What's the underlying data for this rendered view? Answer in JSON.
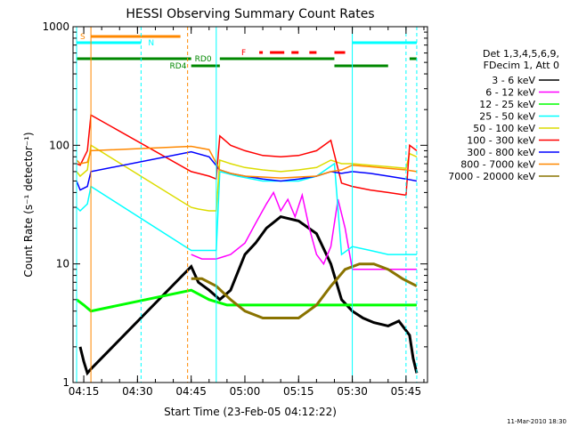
{
  "chart_data": {
    "type": "line",
    "title": "HESSI Observing Summary Count Rates",
    "xlabel": "Start Time (23-Feb-05 04:12:22)",
    "ylabel": "Count Rate (s⁻¹ detector⁻¹)",
    "y_scale": "log",
    "ylim": [
      1,
      1000
    ],
    "xlim": [
      "04:12",
      "05:51"
    ],
    "x_ticks": [
      "04:15",
      "04:30",
      "04:45",
      "05:00",
      "05:15",
      "05:30",
      "05:45"
    ],
    "y_ticks": [
      "1",
      "10",
      "100",
      "1000"
    ],
    "legend_header": [
      "Det 1,3,4,5,6,9,",
      "FDecim 1, Att 0"
    ],
    "legend_position": "right",
    "footer": "11-Mar-2010 18:30",
    "series": [
      {
        "name": "3 - 6 keV",
        "color": "#000000",
        "x": [
          "04:14",
          "04:15",
          "04:16",
          "04:17",
          "04:45",
          "04:47",
          "04:50",
          "04:53",
          "04:56",
          "05:00",
          "05:03",
          "05:06",
          "05:10",
          "05:15",
          "05:20",
          "05:24",
          "05:27",
          "05:30",
          "05:33",
          "05:36",
          "05:40",
          "05:43",
          "05:46",
          "05:47",
          "05:48"
        ],
        "y": [
          2,
          1.5,
          1.2,
          1.3,
          9.5,
          7,
          6,
          5,
          6,
          12,
          15,
          20,
          25,
          23,
          18,
          10,
          5,
          4,
          3.5,
          3.2,
          3,
          3.3,
          2.5,
          1.6,
          1.2
        ]
      },
      {
        "name": "6 - 12 keV",
        "color": "#ff00ff",
        "x": [
          "04:45",
          "04:48",
          "04:52",
          "04:56",
          "05:00",
          "05:03",
          "05:06",
          "05:08",
          "05:10",
          "05:12",
          "05:14",
          "05:16",
          "05:18",
          "05:20",
          "05:22",
          "05:24",
          "05:26",
          "05:28",
          "05:30",
          "05:35",
          "05:40",
          "05:45",
          "05:48"
        ],
        "y": [
          12,
          11,
          11,
          12,
          15,
          22,
          32,
          40,
          28,
          35,
          25,
          38,
          20,
          12,
          10,
          14,
          35,
          20,
          9,
          9,
          9,
          9,
          9
        ]
      },
      {
        "name": "12 - 25 keV",
        "color": "#00ff00",
        "x": [
          "04:13",
          "04:15",
          "04:17",
          "04:45",
          "04:50",
          "04:55",
          "05:00",
          "05:05",
          "05:10",
          "05:15",
          "05:20",
          "05:25",
          "05:30",
          "05:35",
          "05:40",
          "05:45",
          "05:48"
        ],
        "y": [
          5,
          4.5,
          4,
          6,
          5,
          4.5,
          4.5,
          4.5,
          4.5,
          4.5,
          4.5,
          4.5,
          4.5,
          4.5,
          4.5,
          4.5,
          4.5
        ]
      },
      {
        "name": "25 - 50 keV",
        "color": "#00ffff",
        "x": [
          "04:13",
          "04:14",
          "04:16",
          "04:17",
          "04:45",
          "04:48",
          "04:52",
          "04:53",
          "04:58",
          "05:05",
          "05:10",
          "05:15",
          "05:20",
          "05:25",
          "05:27",
          "05:30",
          "05:35",
          "05:40",
          "05:45",
          "05:48"
        ],
        "y": [
          30,
          28,
          32,
          45,
          13,
          13,
          13,
          60,
          55,
          50,
          50,
          50,
          55,
          70,
          12,
          14,
          13,
          12,
          12,
          12
        ]
      },
      {
        "name": "50 - 100 keV",
        "color": "#dcdc00",
        "x": [
          "04:13",
          "04:14",
          "04:16",
          "04:17",
          "04:45",
          "04:47",
          "04:50",
          "04:52",
          "04:53",
          "04:56",
          "05:00",
          "05:05",
          "05:10",
          "05:15",
          "05:20",
          "05:24",
          "05:27",
          "05:30",
          "05:35",
          "05:40",
          "05:45",
          "05:46",
          "05:48"
        ],
        "y": [
          60,
          55,
          62,
          100,
          30,
          29,
          28,
          28,
          75,
          70,
          65,
          62,
          60,
          62,
          65,
          75,
          70,
          70,
          68,
          66,
          64,
          85,
          80
        ]
      },
      {
        "name": "100 - 300 keV",
        "color": "#ff0000",
        "x": [
          "04:13",
          "04:14",
          "04:16",
          "04:17",
          "04:45",
          "04:47",
          "04:50",
          "04:52",
          "04:53",
          "04:56",
          "05:00",
          "05:05",
          "05:10",
          "05:15",
          "05:20",
          "05:24",
          "05:27",
          "05:30",
          "05:35",
          "05:40",
          "05:45",
          "05:46",
          "05:48"
        ],
        "y": [
          70,
          68,
          90,
          180,
          60,
          58,
          55,
          52,
          120,
          100,
          90,
          82,
          80,
          82,
          90,
          110,
          48,
          45,
          42,
          40,
          38,
          100,
          90
        ]
      },
      {
        "name": "300 - 800 keV",
        "color": "#0000ff",
        "x": [
          "04:13",
          "04:14",
          "04:16",
          "04:17",
          "04:45",
          "04:50",
          "04:53",
          "04:56",
          "05:00",
          "05:05",
          "05:10",
          "05:15",
          "05:20",
          "05:24",
          "05:27",
          "05:30",
          "05:35",
          "05:40",
          "05:45",
          "05:48"
        ],
        "y": [
          50,
          42,
          45,
          60,
          88,
          80,
          62,
          58,
          55,
          52,
          50,
          52,
          55,
          60,
          58,
          60,
          58,
          55,
          52,
          50
        ]
      },
      {
        "name": "800 - 7000 keV",
        "color": "#ff8800",
        "x": [
          "04:13",
          "04:14",
          "04:16",
          "04:17",
          "04:45",
          "04:50",
          "04:53",
          "04:56",
          "05:00",
          "05:05",
          "05:10",
          "05:15",
          "05:20",
          "05:24",
          "05:27",
          "05:30",
          "05:35",
          "05:40",
          "05:45",
          "05:48"
        ],
        "y": [
          75,
          70,
          72,
          90,
          98,
          92,
          62,
          58,
          55,
          54,
          53,
          54,
          55,
          60,
          62,
          68,
          66,
          64,
          62,
          60
        ]
      },
      {
        "name": "7000 - 20000 keV",
        "color": "#8a7300",
        "x": [
          "04:45",
          "04:48",
          "04:52",
          "04:56",
          "05:00",
          "05:05",
          "05:10",
          "05:15",
          "05:20",
          "05:24",
          "05:28",
          "05:32",
          "05:36",
          "05:40",
          "05:44",
          "05:48"
        ],
        "y": [
          7.5,
          7.5,
          6.5,
          5,
          4,
          3.5,
          3.5,
          3.5,
          4.5,
          6.5,
          9,
          10,
          10,
          9,
          7.5,
          6.5
        ]
      }
    ],
    "flag_bars": [
      {
        "label": "S",
        "color": "#ff8800",
        "x": [
          "04:17",
          "04:42"
        ]
      },
      {
        "label": "N",
        "color": "#00ffff",
        "x": [
          [
            "04:13",
            "04:31"
          ],
          [
            "05:30",
            "05:48"
          ]
        ]
      },
      {
        "label": "F",
        "color": "#ff0000",
        "x": [
          [
            "05:04",
            "05:05"
          ],
          [
            "05:07",
            "05:11"
          ],
          [
            "05:13",
            "05:15"
          ],
          [
            "05:18",
            "05:20"
          ],
          [
            "05:25",
            "05:28"
          ]
        ]
      },
      {
        "label": "RD0",
        "color": "#008800",
        "x": [
          [
            "04:13",
            "04:45"
          ],
          [
            "04:53",
            "05:25"
          ],
          [
            "05:46",
            "05:48"
          ]
        ]
      },
      {
        "label": "RD4",
        "color": "#008800",
        "x": [
          [
            "04:45",
            "04:53"
          ],
          [
            "05:25",
            "05:40"
          ]
        ]
      }
    ],
    "vlines": [
      {
        "x": "04:13",
        "color": "#00ffff",
        "style": "solid"
      },
      {
        "x": "04:17",
        "color": "#ff8800",
        "style": "solid"
      },
      {
        "x": "04:31",
        "color": "#00ffff",
        "style": "dashed"
      },
      {
        "x": "04:44",
        "color": "#ff8800",
        "style": "dashed"
      },
      {
        "x": "04:52",
        "color": "#00ffff",
        "style": "solid"
      },
      {
        "x": "05:30",
        "color": "#00ffff",
        "style": "solid"
      },
      {
        "x": "05:45",
        "color": "#00ffff",
        "style": "dashed"
      },
      {
        "x": "05:48",
        "color": "#00ffff",
        "style": "dashed"
      }
    ]
  }
}
